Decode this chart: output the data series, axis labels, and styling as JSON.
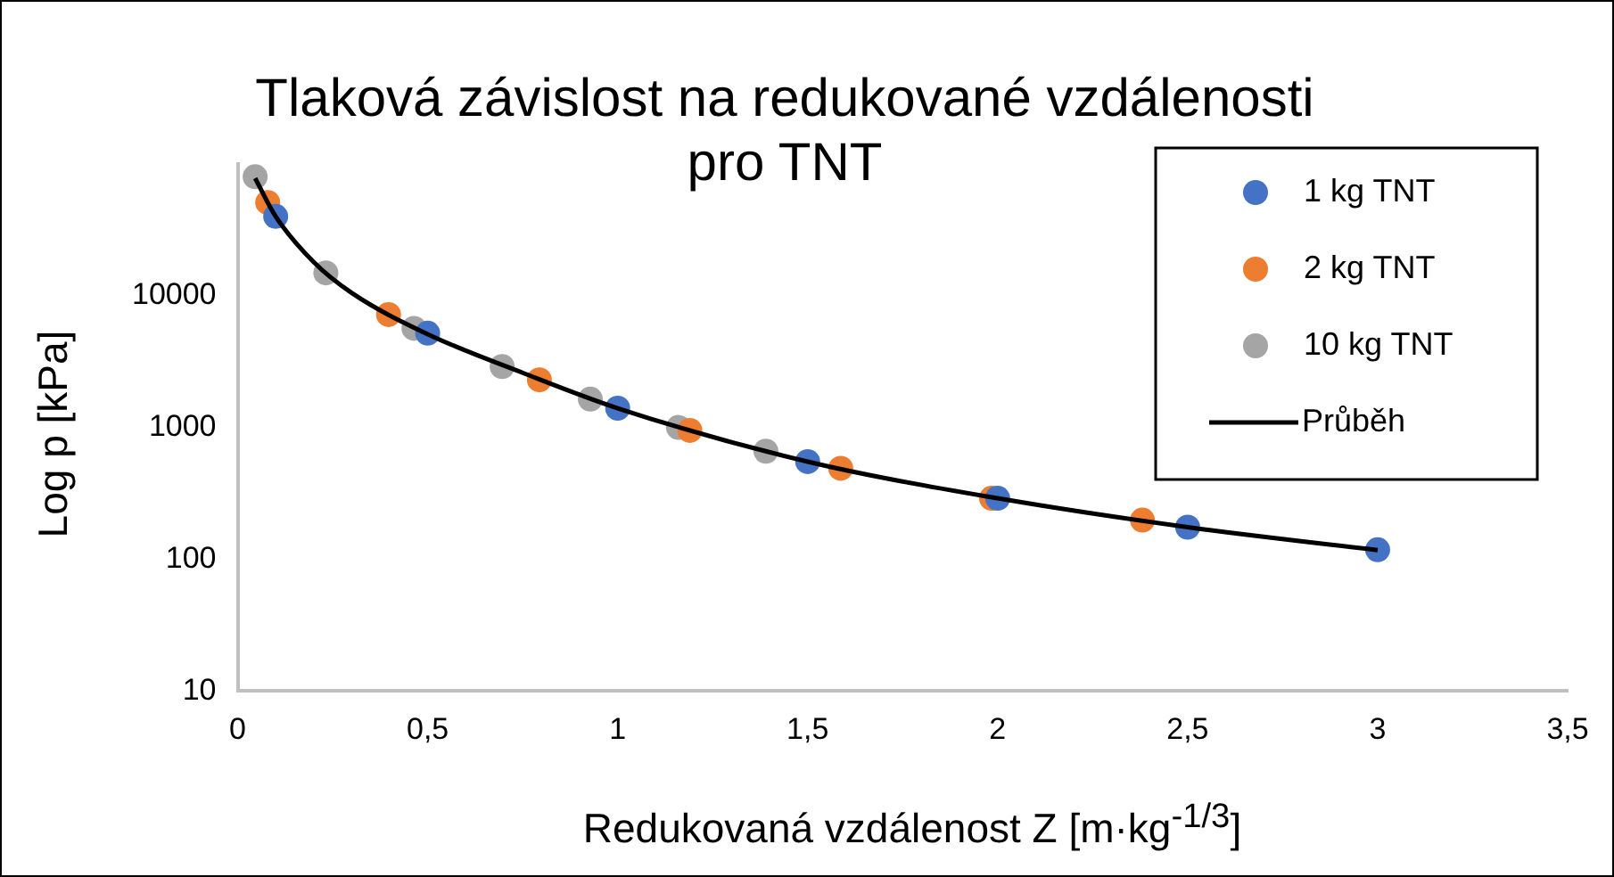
{
  "chart_data": {
    "type": "scatter",
    "title": "Tlaková závislost na redukované vzdálenosti pro TNT",
    "xlabel": "Redukovaná vzdálenost Z [m·kg$^{-1/3}$]",
    "ylabel": "Log p [kPa]",
    "log": "y",
    "xlim": [
      0,
      3.5
    ],
    "ylim": [
      10,
      100000
    ],
    "xticks": [
      0,
      {
        "value": 0.5,
        "label": "0,5"
      },
      1,
      {
        "value": 1.5,
        "label": "1,5"
      },
      2,
      {
        "value": 2.5,
        "label": "2,5"
      },
      3,
      {
        "value": 3.5,
        "label": "3,5"
      }
    ],
    "yticks": [
      10,
      100,
      1000,
      10000
    ],
    "grid": false,
    "legend": "top right",
    "marker": "circle",
    "series": [
      {
        "name": "1 kg TNT",
        "color": "#4472c4",
        "x": [
          0.1,
          0.5,
          1,
          1.5,
          2,
          2.5,
          3
        ],
        "values": [
          40000,
          5200,
          1400,
          550,
          290,
          175,
          118
        ]
      },
      {
        "name": "2 kg TNT",
        "color": "#ed7d31",
        "x": [
          0.079,
          0.397,
          0.794,
          1.19,
          1.587,
          1.984,
          2.381
        ],
        "values": [
          51000,
          7200,
          2300,
          950,
          490,
          290,
          198
        ]
      },
      {
        "name": "10 kg TNT",
        "color": "#a5a5a5",
        "x": [
          0.046,
          0.232,
          0.464,
          0.696,
          0.928,
          1.16,
          1.39
        ],
        "values": [
          80000,
          14900,
          5650,
          2900,
          1640,
          1000,
          660
        ]
      },
      {
        "name": "Průběh",
        "type": "line",
        "color": "#000000",
        "marker": "none",
        "line_style": "solid",
        "x": [
          0.046,
          0.1,
          0.2,
          0.3,
          0.5,
          0.75,
          1,
          1.5,
          2,
          2.5,
          3
        ],
        "values": [
          78000,
          40000,
          18000,
          10500,
          5100,
          2600,
          1400,
          550,
          290,
          175,
          117
        ]
      }
    ]
  }
}
